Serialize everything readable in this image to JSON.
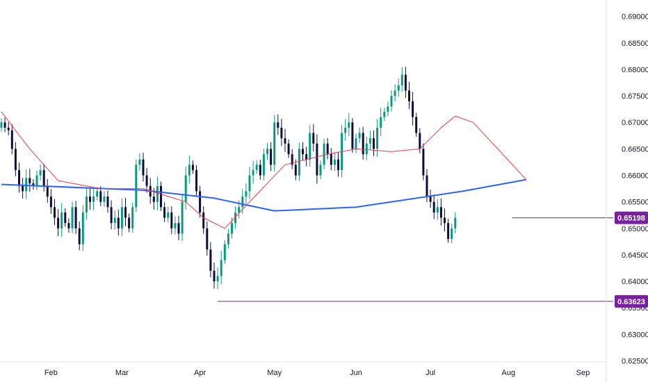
{
  "chart_data": {
    "type": "candlestick",
    "yticks": [
      "0.69000",
      "0.68500",
      "0.68000",
      "0.67500",
      "0.67000",
      "0.66500",
      "0.66000",
      "0.65500",
      "0.65000",
      "0.64500",
      "0.64000",
      "0.63500",
      "0.63000",
      "0.62500"
    ],
    "ylim": [
      0.621,
      0.6931
    ],
    "xticks": [
      "Feb",
      "Mar",
      "Apr",
      "May",
      "Jun",
      "Jul",
      "Aug",
      "Sep"
    ],
    "xtick_index": [
      14,
      34,
      56,
      77,
      100,
      121,
      143,
      164
    ],
    "close_series": [
      0.67,
      0.669,
      0.6685,
      0.665,
      0.661,
      0.658,
      0.657,
      0.6595,
      0.6585,
      0.658,
      0.66,
      0.661,
      0.658,
      0.656,
      0.654,
      0.652,
      0.65,
      0.653,
      0.651,
      0.65,
      0.654,
      0.65,
      0.647,
      0.653,
      0.656,
      0.655,
      0.656,
      0.657,
      0.655,
      0.656,
      0.654,
      0.651,
      0.652,
      0.65,
      0.654,
      0.652,
      0.65,
      0.654,
      0.662,
      0.663,
      0.66,
      0.658,
      0.656,
      0.655,
      0.658,
      0.654,
      0.652,
      0.653,
      0.65,
      0.651,
      0.649,
      0.655,
      0.66,
      0.662,
      0.661,
      0.657,
      0.653,
      0.65,
      0.646,
      0.642,
      0.64,
      0.641,
      0.644,
      0.647,
      0.649,
      0.651,
      0.653,
      0.654,
      0.656,
      0.657,
      0.66,
      0.661,
      0.662,
      0.66,
      0.664,
      0.665,
      0.662,
      0.67,
      0.669,
      0.667,
      0.666,
      0.664,
      0.662,
      0.66,
      0.665,
      0.664,
      0.663,
      0.668,
      0.666,
      0.66,
      0.662,
      0.666,
      0.664,
      0.662,
      0.663,
      0.661,
      0.668,
      0.669,
      0.67,
      0.665,
      0.667,
      0.668,
      0.664,
      0.666,
      0.667,
      0.665,
      0.669,
      0.671,
      0.672,
      0.673,
      0.675,
      0.676,
      0.677,
      0.679,
      0.676,
      0.674,
      0.671,
      0.668,
      0.665,
      0.66,
      0.656,
      0.655,
      0.653,
      0.654,
      0.652,
      0.651,
      0.648,
      0.65,
      0.652
    ],
    "ma_slow_points": [
      [
        0,
        0.6583
      ],
      [
        40,
        0.6572
      ],
      [
        60,
        0.6557
      ],
      [
        77,
        0.6533
      ],
      [
        100,
        0.654
      ],
      [
        130,
        0.657
      ],
      [
        148,
        0.6592
      ]
    ],
    "ma_fast_points": [
      [
        0,
        0.672
      ],
      [
        8,
        0.665
      ],
      [
        16,
        0.659
      ],
      [
        28,
        0.6575
      ],
      [
        40,
        0.6575
      ],
      [
        52,
        0.655
      ],
      [
        57,
        0.652
      ],
      [
        63,
        0.65
      ],
      [
        70,
        0.655
      ],
      [
        80,
        0.662
      ],
      [
        92,
        0.664
      ],
      [
        100,
        0.665
      ],
      [
        110,
        0.6645
      ],
      [
        118,
        0.665
      ],
      [
        124,
        0.669
      ],
      [
        128,
        0.6712
      ],
      [
        133,
        0.67
      ],
      [
        140,
        0.665
      ],
      [
        148,
        0.6592
      ]
    ],
    "highlight": {
      "start": 142,
      "end": 145
    },
    "markers": [
      {
        "price": 0.65198,
        "label": "0.65198",
        "from_index": 144
      },
      {
        "price": 0.63623,
        "label": "0.63623",
        "from_index": 61
      }
    ],
    "colors": {
      "up": "#089981",
      "down": "#0d0d3d",
      "ma_slow": "#2962ff",
      "ma_fast": "#f23645",
      "marker": "#7b1fa2",
      "highlight": "#7fd3e4"
    }
  }
}
